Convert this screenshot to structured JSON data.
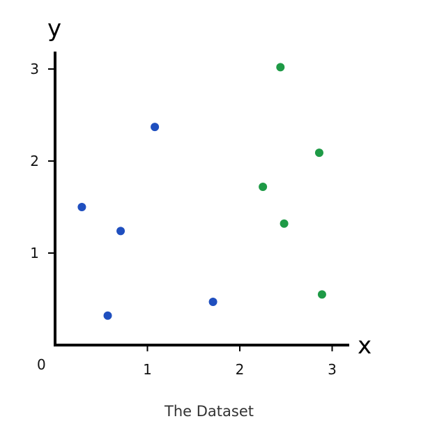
{
  "caption": "The Dataset",
  "chart_data": {
    "type": "scatter",
    "title": "",
    "xlabel": "x",
    "ylabel": "y",
    "xlim": [
      0,
      3.2
    ],
    "ylim": [
      0,
      3.2
    ],
    "origin_label": "0",
    "x_ticks": [
      1,
      2,
      3
    ],
    "y_ticks": [
      1,
      2,
      3
    ],
    "grid": false,
    "legend": "none",
    "series": [
      {
        "color": "#1f4fbf",
        "x": [
          0.29,
          0.57,
          0.71,
          1.08,
          1.71
        ],
        "y": [
          1.5,
          0.32,
          1.24,
          2.37,
          0.47
        ]
      },
      {
        "color": "#1e9a46",
        "x": [
          2.25,
          2.44,
          2.48,
          2.86,
          2.89
        ],
        "y": [
          1.72,
          3.02,
          1.32,
          2.09,
          0.55
        ]
      }
    ]
  }
}
